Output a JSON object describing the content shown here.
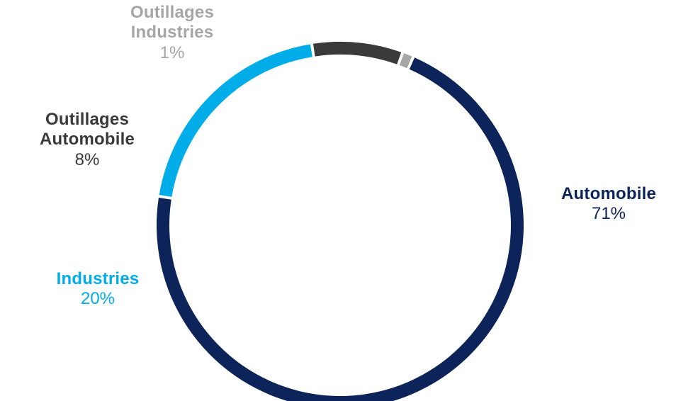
{
  "chart_data": {
    "type": "pie",
    "style": "donut",
    "title": "",
    "legend": "none",
    "slices": [
      {
        "name_lines": [
          "Automobile"
        ],
        "value": 71,
        "label": "71%",
        "color": "#0c2459"
      },
      {
        "name_lines": [
          "Industries"
        ],
        "value": 20,
        "label": "20%",
        "color": "#00ade8"
      },
      {
        "name_lines": [
          "Outillages",
          "Automobile"
        ],
        "value": 8,
        "label": "8%",
        "color": "#3a3a3a"
      },
      {
        "name_lines": [
          "Outillages",
          "Industries"
        ],
        "value": 1,
        "label": "1%",
        "color": "#a6a6a6"
      }
    ]
  }
}
